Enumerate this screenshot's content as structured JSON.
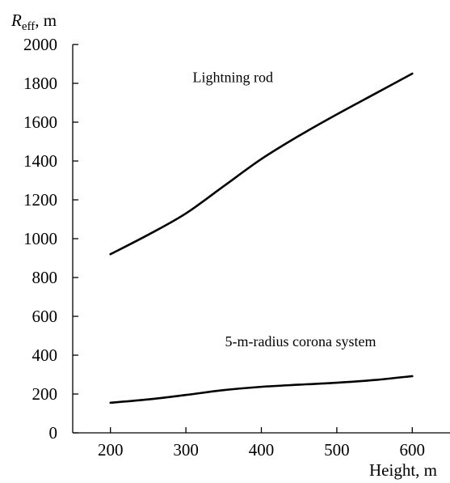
{
  "chart_data": {
    "type": "line",
    "title": "",
    "xlabel": "Height, m",
    "ylabel_symbol": "R",
    "ylabel_subscript": "eff",
    "ylabel_unit": ", m",
    "xlim": [
      150,
      650
    ],
    "ylim": [
      0,
      2000
    ],
    "xticks": [
      200,
      300,
      400,
      500,
      600
    ],
    "yticks": [
      0,
      200,
      400,
      600,
      800,
      1000,
      1200,
      1400,
      1600,
      1800,
      2000
    ],
    "grid": false,
    "legend": "none",
    "series": [
      {
        "name": "Lightning rod",
        "color": "#000000",
        "x": [
          200,
          250,
          300,
          350,
          400,
          450,
          500,
          550,
          600
        ],
        "y": [
          920,
          1020,
          1130,
          1270,
          1410,
          1530,
          1640,
          1745,
          1850
        ]
      },
      {
        "name": "5-m-radius corona system",
        "color": "#000000",
        "x": [
          200,
          250,
          300,
          350,
          400,
          450,
          500,
          550,
          600
        ],
        "y": [
          155,
          172,
          195,
          220,
          237,
          248,
          258,
          272,
          292
        ]
      }
    ]
  }
}
